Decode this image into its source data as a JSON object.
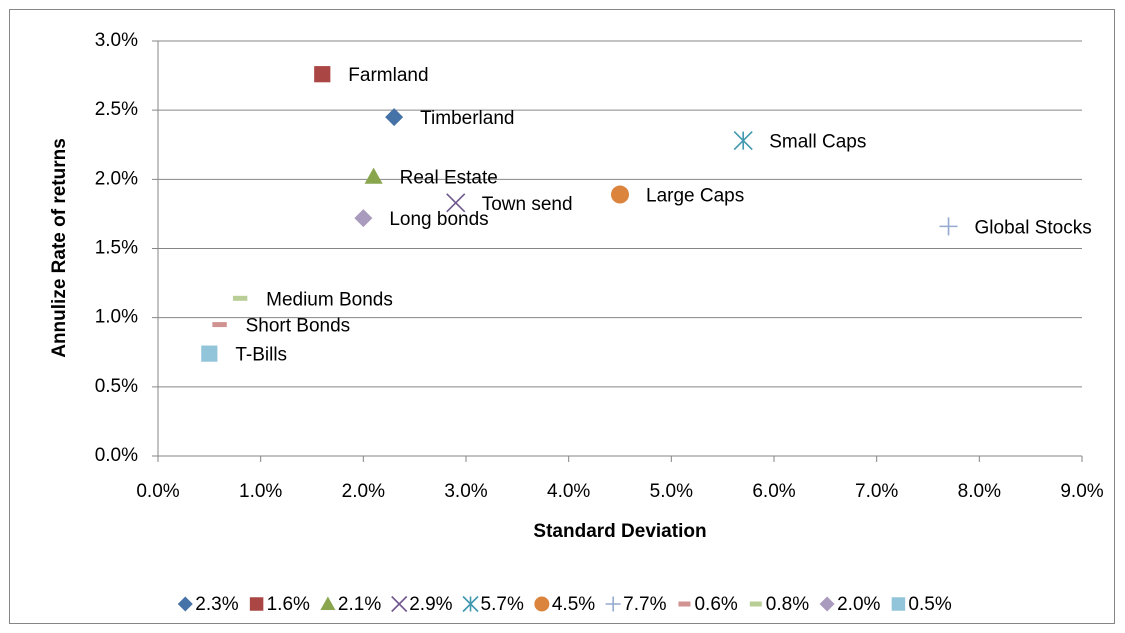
{
  "chart_data": {
    "type": "scatter",
    "x_label": "Standard Deviation",
    "y_label": "Annulize Rate of returns",
    "xlim": [
      0,
      9
    ],
    "ylim": [
      0,
      3
    ],
    "xticks": [
      {
        "value": 0,
        "label": "0.0%"
      },
      {
        "value": 1,
        "label": "1.0%"
      },
      {
        "value": 2,
        "label": "2.0%"
      },
      {
        "value": 3,
        "label": "3.0%"
      },
      {
        "value": 4,
        "label": "4.0%"
      },
      {
        "value": 5,
        "label": "5.0%"
      },
      {
        "value": 6,
        "label": "6.0%"
      },
      {
        "value": 7,
        "label": "7.0%"
      },
      {
        "value": 8,
        "label": "8.0%"
      },
      {
        "value": 9,
        "label": "9.0%"
      }
    ],
    "yticks": [
      {
        "value": 0,
        "label": "0.0%"
      },
      {
        "value": 0.5,
        "label": "0.5%"
      },
      {
        "value": 1,
        "label": "1.0%"
      },
      {
        "value": 1.5,
        "label": "1.5%"
      },
      {
        "value": 2,
        "label": "2.0%"
      },
      {
        "value": 2.5,
        "label": "2.5%"
      },
      {
        "value": 3,
        "label": "3.0%"
      }
    ],
    "grid": true,
    "legend": "bottom",
    "series": [
      {
        "name": "2.3%",
        "label": "Timberland",
        "marker": "diamond",
        "color": "#4572a7",
        "x": [
          2.3
        ],
        "y": [
          2.45
        ]
      },
      {
        "name": "1.6%",
        "label": "Farmland",
        "marker": "square",
        "color": "#aa4643",
        "x": [
          1.6
        ],
        "y": [
          2.76
        ]
      },
      {
        "name": "2.1%",
        "label": "Real Estate",
        "marker": "triangle",
        "color": "#89a54e",
        "x": [
          2.1
        ],
        "y": [
          2.02
        ]
      },
      {
        "name": "2.9%",
        "label": "Town send",
        "marker": "x",
        "color": "#71588f",
        "x": [
          2.9
        ],
        "y": [
          1.83
        ]
      },
      {
        "name": "5.7%",
        "label": "Small Caps",
        "marker": "star",
        "color": "#4198af",
        "x": [
          5.7
        ],
        "y": [
          2.28
        ]
      },
      {
        "name": "4.5%",
        "label": "Large Caps",
        "marker": "circle",
        "color": "#db843d",
        "x": [
          4.5
        ],
        "y": [
          1.89
        ]
      },
      {
        "name": "7.7%",
        "label": "Global Stocks",
        "marker": "plus",
        "color": "#93a9cf",
        "x": [
          7.7
        ],
        "y": [
          1.66
        ]
      },
      {
        "name": "0.6%",
        "label": "Short Bonds",
        "marker": "dash",
        "color": "#d19392",
        "x": [
          0.6
        ],
        "y": [
          0.95
        ]
      },
      {
        "name": "0.8%",
        "label": "Medium Bonds",
        "marker": "dash",
        "color": "#b9cd96",
        "x": [
          0.8
        ],
        "y": [
          1.14
        ]
      },
      {
        "name": "2.0%",
        "label": "Long bonds",
        "marker": "diamond",
        "color": "#a99bbd",
        "x": [
          2.0
        ],
        "y": [
          1.72
        ]
      },
      {
        "name": "0.5%",
        "label": "T-Bills",
        "marker": "square",
        "color": "#92c5da",
        "x": [
          0.5
        ],
        "y": [
          0.74
        ]
      }
    ]
  }
}
